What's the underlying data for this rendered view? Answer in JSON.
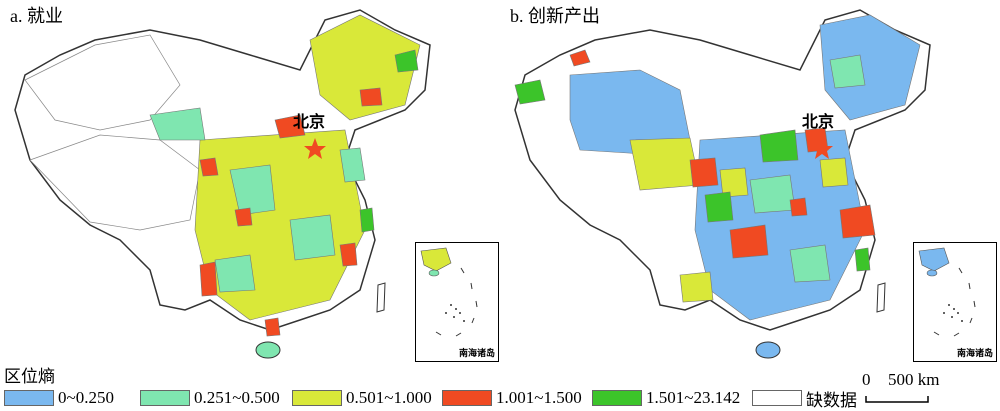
{
  "panels": [
    {
      "title": "a. 就业",
      "capital_label": "北京",
      "inset_label": "南海诸岛"
    },
    {
      "title": "b. 创新产出",
      "capital_label": "北京",
      "inset_label": "南海诸岛"
    }
  ],
  "legend": {
    "title": "区位熵",
    "items": [
      {
        "label": "0~0.250",
        "color": "#7ab8ef"
      },
      {
        "label": "0.251~0.500",
        "color": "#7fe6b0"
      },
      {
        "label": "0.501~1.000",
        "color": "#d9e839"
      },
      {
        "label": "1.001~1.500",
        "color": "#f04a22"
      },
      {
        "label": "1.501~23.142",
        "color": "#3cc42a"
      },
      {
        "label": "缺数据",
        "color": "#ffffff"
      }
    ]
  },
  "scale": {
    "zero": "0",
    "distance": "500 km"
  }
}
